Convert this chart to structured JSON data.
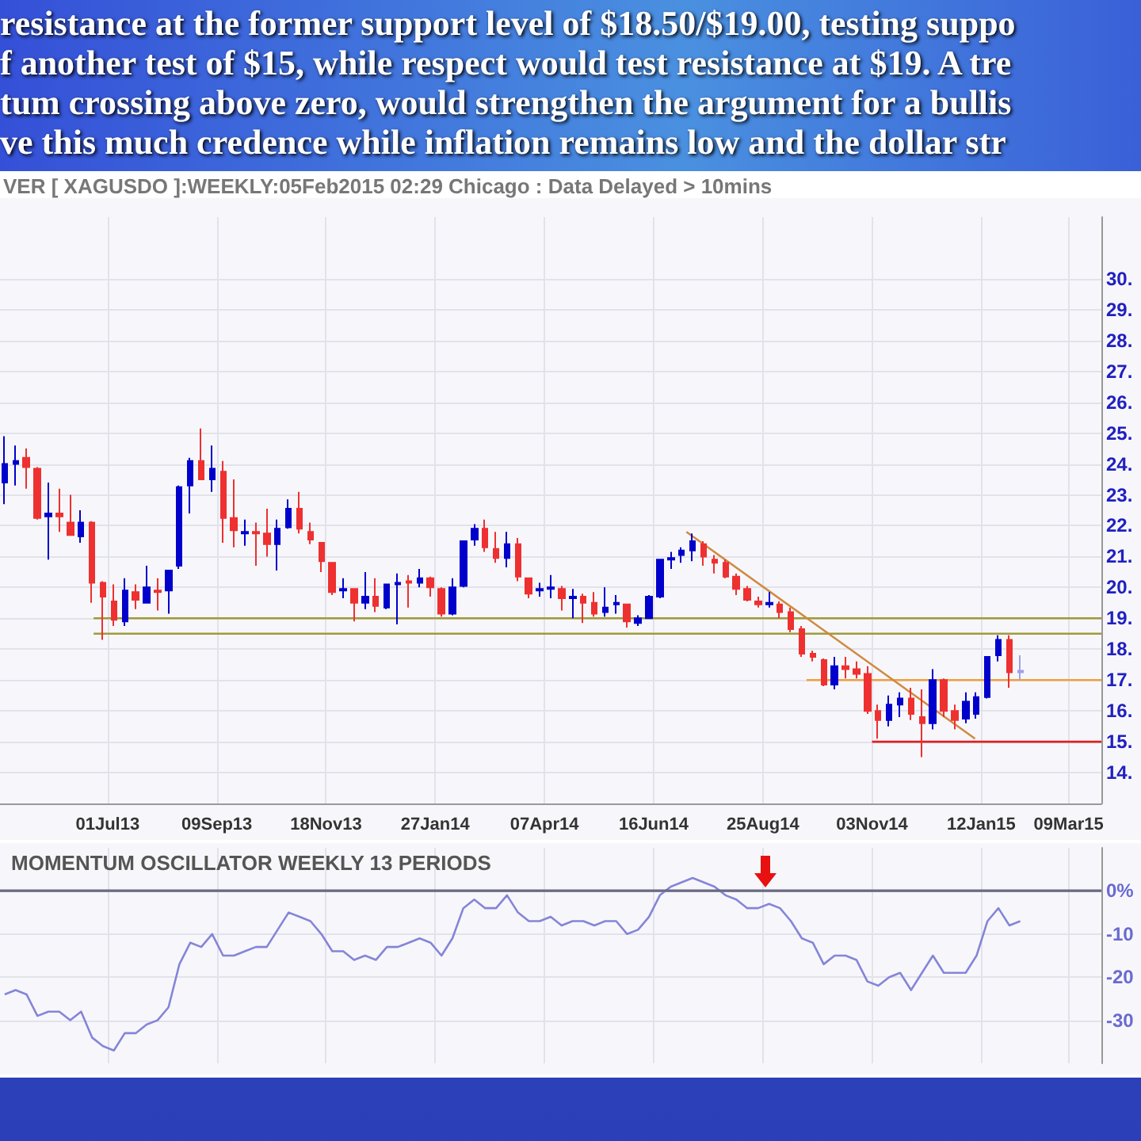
{
  "chart_data": [
    {
      "type": "candlestick",
      "subtitle": "VER [ XAGUSDO ]:WEEKLY:05Feb2015 02:29 Chicago : Data Delayed > 10mins",
      "annotations": [
        "resistance at the former support level of $18.50/$19.00, testing suppo",
        "f another test of $15, while respect would test resistance at $19. A tre",
        "tum crossing above zero, would strengthen the argument for a bullis",
        "ve this much credence while inflation remains low and the dollar str"
      ],
      "x": [
        "2013-04-26",
        "2013-05-03",
        "2013-05-10",
        "2013-05-17",
        "2013-05-24",
        "2013-05-31",
        "2013-06-07",
        "2013-06-14",
        "2013-06-21",
        "2013-06-28",
        "2013-07-05",
        "2013-07-12",
        "2013-07-19",
        "2013-07-26",
        "2013-08-02",
        "2013-08-09",
        "2013-08-16",
        "2013-08-23",
        "2013-08-30",
        "2013-09-06",
        "2013-09-13",
        "2013-09-20",
        "2013-09-27",
        "2013-10-04",
        "2013-10-11",
        "2013-10-18",
        "2013-10-25",
        "2013-11-01",
        "2013-11-08",
        "2013-11-15",
        "2013-11-22",
        "2013-11-29",
        "2013-12-06",
        "2013-12-13",
        "2013-12-20",
        "2013-12-27",
        "2014-01-03",
        "2014-01-10",
        "2014-01-17",
        "2014-01-24",
        "2014-01-31",
        "2014-02-07",
        "2014-02-14",
        "2014-02-21",
        "2014-02-28",
        "2014-03-07",
        "2014-03-14",
        "2014-03-21",
        "2014-03-28",
        "2014-04-04",
        "2014-04-11",
        "2014-04-18",
        "2014-04-25",
        "2014-05-02",
        "2014-05-09",
        "2014-05-16",
        "2014-05-23",
        "2014-05-30",
        "2014-06-06",
        "2014-06-13",
        "2014-06-20",
        "2014-06-27",
        "2014-07-04",
        "2014-07-11",
        "2014-07-18",
        "2014-07-25",
        "2014-08-01",
        "2014-08-08",
        "2014-08-15",
        "2014-08-22",
        "2014-08-29",
        "2014-09-05",
        "2014-09-12",
        "2014-09-19",
        "2014-09-26",
        "2014-10-03",
        "2014-10-10",
        "2014-10-17",
        "2014-10-24",
        "2014-10-31",
        "2014-11-07",
        "2014-11-14",
        "2014-11-21",
        "2014-11-28",
        "2014-12-05",
        "2014-12-12",
        "2014-12-19",
        "2014-12-26",
        "2015-01-02",
        "2015-01-09",
        "2015-01-16",
        "2015-01-23",
        "2015-01-30",
        "2015-02-06"
      ],
      "ohlc": [
        [
          23.4,
          24.9,
          22.7,
          24.0
        ],
        [
          24.0,
          24.6,
          23.3,
          24.1
        ],
        [
          24.2,
          24.5,
          23.2,
          23.9
        ],
        [
          23.85,
          23.9,
          22.2,
          22.25
        ],
        [
          22.3,
          23.4,
          20.9,
          22.4
        ],
        [
          22.4,
          23.2,
          21.8,
          22.3
        ],
        [
          22.1,
          23.0,
          21.7,
          21.7
        ],
        [
          21.65,
          22.5,
          21.45,
          22.1
        ],
        [
          22.1,
          22.15,
          19.5,
          20.15
        ],
        [
          20.15,
          20.2,
          18.3,
          19.7
        ],
        [
          19.55,
          20.1,
          18.75,
          18.95
        ],
        [
          18.9,
          20.3,
          18.75,
          19.9
        ],
        [
          19.85,
          20.1,
          19.3,
          19.6
        ],
        [
          19.5,
          20.7,
          19.5,
          20.0
        ],
        [
          19.9,
          20.3,
          19.25,
          19.85
        ],
        [
          19.9,
          20.55,
          19.15,
          20.55
        ],
        [
          20.7,
          23.3,
          20.6,
          23.25
        ],
        [
          23.3,
          24.2,
          22.4,
          24.1
        ],
        [
          24.1,
          25.15,
          23.5,
          23.5
        ],
        [
          23.5,
          24.6,
          23.1,
          23.85
        ],
        [
          23.75,
          24.1,
          21.45,
          22.25
        ],
        [
          22.25,
          23.5,
          21.3,
          21.85
        ],
        [
          21.75,
          22.2,
          21.35,
          21.8
        ],
        [
          21.8,
          22.1,
          20.7,
          21.75
        ],
        [
          21.75,
          22.55,
          21.0,
          21.4
        ],
        [
          21.4,
          22.2,
          20.55,
          21.9
        ],
        [
          21.95,
          22.85,
          21.9,
          22.55
        ],
        [
          22.55,
          23.1,
          21.75,
          21.9
        ],
        [
          21.8,
          22.1,
          21.4,
          21.55
        ],
        [
          21.45,
          21.45,
          20.5,
          20.85
        ],
        [
          20.8,
          20.8,
          19.75,
          19.85
        ],
        [
          19.9,
          20.3,
          19.65,
          19.95
        ],
        [
          19.95,
          19.95,
          18.9,
          19.5
        ],
        [
          19.5,
          20.5,
          19.3,
          19.7
        ],
        [
          19.7,
          20.3,
          19.2,
          19.4
        ],
        [
          19.35,
          20.1,
          19.3,
          20.1
        ],
        [
          20.1,
          20.45,
          18.8,
          20.15
        ],
        [
          20.2,
          20.4,
          19.35,
          20.15
        ],
        [
          20.15,
          20.6,
          20.0,
          20.3
        ],
        [
          20.3,
          20.35,
          19.7,
          20.0
        ],
        [
          19.95,
          20.0,
          19.05,
          19.15
        ],
        [
          19.15,
          20.3,
          19.1,
          20.0
        ],
        [
          20.05,
          21.5,
          20.0,
          21.5
        ],
        [
          21.55,
          22.05,
          21.35,
          21.9
        ],
        [
          21.9,
          22.2,
          21.15,
          21.3
        ],
        [
          21.25,
          21.8,
          20.8,
          20.95
        ],
        [
          20.95,
          21.8,
          20.65,
          21.4
        ],
        [
          21.4,
          21.6,
          20.2,
          20.35
        ],
        [
          20.3,
          20.3,
          19.65,
          19.8
        ],
        [
          19.9,
          20.15,
          19.7,
          19.95
        ],
        [
          19.95,
          20.4,
          19.65,
          20.0
        ],
        [
          19.95,
          20.05,
          19.25,
          19.65
        ],
        [
          19.65,
          19.95,
          19.0,
          19.7
        ],
        [
          19.7,
          19.8,
          18.85,
          19.5
        ],
        [
          19.5,
          19.85,
          19.05,
          19.15
        ],
        [
          19.2,
          20.0,
          19.05,
          19.35
        ],
        [
          19.45,
          19.75,
          19.15,
          19.5
        ],
        [
          19.45,
          19.45,
          18.7,
          18.9
        ],
        [
          18.85,
          19.1,
          18.75,
          19.0
        ],
        [
          19.0,
          19.75,
          18.98,
          19.7
        ],
        [
          19.7,
          20.9,
          19.65,
          20.9
        ],
        [
          20.9,
          21.15,
          20.6,
          20.95
        ],
        [
          21.05,
          21.3,
          20.8,
          21.2
        ],
        [
          21.2,
          21.75,
          20.85,
          21.5
        ],
        [
          21.4,
          21.5,
          20.7,
          21.0
        ],
        [
          20.9,
          21.05,
          20.45,
          20.8
        ],
        [
          20.8,
          20.9,
          20.3,
          20.35
        ],
        [
          20.35,
          20.45,
          19.75,
          19.95
        ],
        [
          19.95,
          20.05,
          19.55,
          19.6
        ],
        [
          19.55,
          19.7,
          19.35,
          19.45
        ],
        [
          19.45,
          19.85,
          19.35,
          19.5
        ],
        [
          19.45,
          19.55,
          19.0,
          19.2
        ],
        [
          19.2,
          19.35,
          18.55,
          18.65
        ],
        [
          18.65,
          18.75,
          17.75,
          17.85
        ],
        [
          17.85,
          17.95,
          17.6,
          17.75
        ],
        [
          17.65,
          17.7,
          16.8,
          16.85
        ],
        [
          16.85,
          17.75,
          16.7,
          17.45
        ],
        [
          17.45,
          17.75,
          17.05,
          17.35
        ],
        [
          17.35,
          17.6,
          17.05,
          17.2
        ],
        [
          17.2,
          17.45,
          15.9,
          16.0
        ],
        [
          16.0,
          16.2,
          15.1,
          15.7
        ],
        [
          15.7,
          16.5,
          15.5,
          16.2
        ],
        [
          16.2,
          16.6,
          15.8,
          16.4
        ],
        [
          16.4,
          16.75,
          15.7,
          15.9
        ],
        [
          15.8,
          16.7,
          14.5,
          15.6
        ],
        [
          15.6,
          17.35,
          15.4,
          17.0
        ],
        [
          17.0,
          17.05,
          15.8,
          16.0
        ],
        [
          16.0,
          16.2,
          15.4,
          15.7
        ],
        [
          15.75,
          16.6,
          15.6,
          16.3
        ],
        [
          15.9,
          16.6,
          15.75,
          16.45
        ],
        [
          16.45,
          17.75,
          16.4,
          17.75
        ],
        [
          17.8,
          18.45,
          17.6,
          18.3
        ],
        [
          18.3,
          18.45,
          16.75,
          17.25
        ],
        [
          17.25,
          17.8,
          17.0,
          17.3
        ]
      ],
      "colors": [
        "#0000cc",
        "#0000cc",
        "#ee3030",
        "#ee3030",
        "#0000cc",
        "#ee3030",
        "#ee3030",
        "#0000cc",
        "#ee3030",
        "#ee3030",
        "#ee3030",
        "#0000cc",
        "#ee3030",
        "#0000cc",
        "#ee3030",
        "#0000cc",
        "#0000cc",
        "#0000cc",
        "#ee3030",
        "#0000cc",
        "#ee3030",
        "#ee3030",
        "#0000cc",
        "#ee3030",
        "#ee3030",
        "#0000cc",
        "#0000cc",
        "#ee3030",
        "#ee3030",
        "#ee3030",
        "#ee3030",
        "#0000cc",
        "#ee3030",
        "#0000cc",
        "#ee3030",
        "#0000cc",
        "#0000cc",
        "#ee3030",
        "#0000cc",
        "#ee3030",
        "#ee3030",
        "#0000cc",
        "#0000cc",
        "#0000cc",
        "#ee3030",
        "#ee3030",
        "#0000cc",
        "#ee3030",
        "#ee3030",
        "#0000cc",
        "#0000cc",
        "#ee3030",
        "#0000cc",
        "#ee3030",
        "#ee3030",
        "#0000cc",
        "#0000cc",
        "#ee3030",
        "#0000cc",
        "#0000cc",
        "#0000cc",
        "#0000cc",
        "#0000cc",
        "#0000cc",
        "#ee3030",
        "#ee3030",
        "#ee3030",
        "#ee3030",
        "#ee3030",
        "#ee3030",
        "#0000cc",
        "#ee3030",
        "#ee3030",
        "#ee3030",
        "#ee3030",
        "#ee3030",
        "#0000cc",
        "#ee3030",
        "#ee3030",
        "#ee3030",
        "#ee3030",
        "#0000cc",
        "#0000cc",
        "#ee3030",
        "#ee3030",
        "#0000cc",
        "#ee3030",
        "#ee3030",
        "#0000cc",
        "#0000cc",
        "#0000cc",
        "#0000cc",
        "#ee3030",
        "#9fa0e8"
      ],
      "series": [
        {
          "type": "line",
          "x": [
            "2013-06-22",
            "2015-03-30"
          ],
          "values": [
            19.0,
            19.0
          ],
          "color": "#a09a3a"
        },
        {
          "type": "line",
          "x": [
            "2013-06-22",
            "2015-03-30"
          ],
          "values": [
            18.5,
            18.5
          ],
          "color": "#a09a3a"
        },
        {
          "type": "line",
          "x": [
            "2014-09-22",
            "2015-03-30"
          ],
          "values": [
            17.0,
            17.0
          ],
          "color": "#f0a040"
        },
        {
          "type": "line",
          "x": [
            "2014-11-03",
            "2015-03-30"
          ],
          "values": [
            15.0,
            15.0
          ],
          "color": "#e02020"
        },
        {
          "type": "line",
          "x": [
            "2014-07-07",
            "2015-01-08"
          ],
          "values": [
            21.8,
            15.1
          ],
          "color": "#d08a40"
        }
      ],
      "xlim": [
        "2013-04-23",
        "2015-03-30"
      ],
      "xticks": [
        {
          "value": "2013-07-01",
          "label": "01Jul13"
        },
        {
          "value": "2013-09-09",
          "label": "09Sep13"
        },
        {
          "value": "2013-11-18",
          "label": "18Nov13"
        },
        {
          "value": "2014-01-27",
          "label": "27Jan14"
        },
        {
          "value": "2014-04-07",
          "label": "07Apr14"
        },
        {
          "value": "2014-06-16",
          "label": "16Jun14"
        },
        {
          "value": "2014-08-25",
          "label": "25Aug14"
        },
        {
          "value": "2014-11-03",
          "label": "03Nov14"
        },
        {
          "value": "2015-01-12",
          "label": "12Jan15"
        },
        {
          "value": "2015-03-09",
          "label": "09Mar15"
        }
      ],
      "ylim": [
        13,
        32
      ],
      "yticks": [
        {
          "value": 14,
          "label": "14."
        },
        {
          "value": 15,
          "label": "15."
        },
        {
          "value": 16,
          "label": "16."
        },
        {
          "value": 17,
          "label": "17."
        },
        {
          "value": 18,
          "label": "18."
        },
        {
          "value": 19,
          "label": "19."
        },
        {
          "value": 20,
          "label": "20."
        },
        {
          "value": 21,
          "label": "21."
        },
        {
          "value": 22,
          "label": "22."
        },
        {
          "value": 23,
          "label": "23."
        },
        {
          "value": 24,
          "label": "24."
        },
        {
          "value": 25,
          "label": "25."
        },
        {
          "value": 26,
          "label": "26."
        },
        {
          "value": 27,
          "label": "27."
        },
        {
          "value": 28,
          "label": "28."
        },
        {
          "value": 29,
          "label": "29."
        },
        {
          "value": 30,
          "label": "30."
        }
      ],
      "grid": true
    },
    {
      "type": "line",
      "title": "MOMENTUM OSCILLATOR WEEKLY 13 PERIODS",
      "color": "#8585d8",
      "x": [
        "2013-04-26",
        "2013-05-03",
        "2013-05-10",
        "2013-05-17",
        "2013-05-24",
        "2013-05-31",
        "2013-06-07",
        "2013-06-14",
        "2013-06-21",
        "2013-06-28",
        "2013-07-05",
        "2013-07-12",
        "2013-07-19",
        "2013-07-26",
        "2013-08-02",
        "2013-08-09",
        "2013-08-16",
        "2013-08-23",
        "2013-08-30",
        "2013-09-06",
        "2013-09-13",
        "2013-09-20",
        "2013-09-27",
        "2013-10-04",
        "2013-10-11",
        "2013-10-18",
        "2013-10-25",
        "2013-11-01",
        "2013-11-08",
        "2013-11-15",
        "2013-11-22",
        "2013-11-29",
        "2013-12-06",
        "2013-12-13",
        "2013-12-20",
        "2013-12-27",
        "2014-01-03",
        "2014-01-10",
        "2014-01-17",
        "2014-01-24",
        "2014-01-31",
        "2014-02-07",
        "2014-02-14",
        "2014-02-21",
        "2014-02-28",
        "2014-03-07",
        "2014-03-14",
        "2014-03-21",
        "2014-03-28",
        "2014-04-04",
        "2014-04-11",
        "2014-04-18",
        "2014-04-25",
        "2014-05-02",
        "2014-05-09",
        "2014-05-16",
        "2014-05-23",
        "2014-05-30",
        "2014-06-06",
        "2014-06-13",
        "2014-06-20",
        "2014-06-27",
        "2014-07-04",
        "2014-07-11",
        "2014-07-18",
        "2014-07-25",
        "2014-08-01",
        "2014-08-08",
        "2014-08-15",
        "2014-08-22",
        "2014-08-29",
        "2014-09-05",
        "2014-09-12",
        "2014-09-19",
        "2014-09-26",
        "2014-10-03",
        "2014-10-10",
        "2014-10-17",
        "2014-10-24",
        "2014-10-31",
        "2014-11-07",
        "2014-11-14",
        "2014-11-21",
        "2014-11-28",
        "2014-12-05",
        "2014-12-12",
        "2014-12-19",
        "2014-12-26",
        "2015-01-02",
        "2015-01-09",
        "2015-01-16",
        "2015-01-23",
        "2015-01-30",
        "2015-02-06"
      ],
      "values": [
        -24,
        -23,
        -24,
        -29,
        -28,
        -28,
        -30,
        -28,
        -34,
        -36,
        -37,
        -33,
        -33,
        -31,
        -30,
        -27,
        -17,
        -12,
        -13,
        -10,
        -15,
        -15,
        -14,
        -13,
        -13,
        -9,
        -5,
        -6,
        -7,
        -10,
        -14,
        -14,
        -16,
        -15,
        -16,
        -13,
        -13,
        -12,
        -11,
        -12,
        -15,
        -11,
        -4,
        -2,
        -4,
        -4,
        -1,
        -5,
        -7,
        -7,
        -6,
        -8,
        -7,
        -7,
        -8,
        -7,
        -7,
        -10,
        -9,
        -6,
        -1,
        1,
        2,
        3,
        2,
        1,
        -1,
        -2,
        -4,
        -4,
        -3,
        -4,
        -7,
        -11,
        -12,
        -17,
        -15,
        -15,
        -16,
        -21,
        -22,
        -20,
        -19,
        -23,
        -19,
        -15,
        -19,
        -19,
        -19,
        -15,
        -7,
        -4,
        -8,
        -7
      ],
      "xlim": [
        "2013-04-23",
        "2015-03-30"
      ],
      "xticks": [
        {
          "value": "2013-07-01",
          "label": null
        },
        {
          "value": "2013-09-09",
          "label": null
        },
        {
          "value": "2013-11-18",
          "label": null
        },
        {
          "value": "2014-01-27",
          "label": null
        },
        {
          "value": "2014-04-07",
          "label": null
        },
        {
          "value": "2014-06-16",
          "label": null
        },
        {
          "value": "2014-08-25",
          "label": null
        },
        {
          "value": "2014-11-03",
          "label": null
        },
        {
          "value": "2015-01-12",
          "label": null
        },
        {
          "value": "2015-03-09",
          "label": null
        }
      ],
      "ylim": [
        -40,
        10
      ],
      "yticks": [
        {
          "value": 0,
          "label": "0%"
        },
        {
          "value": -10,
          "label": "-10"
        },
        {
          "value": -20,
          "label": "-20"
        },
        {
          "value": -30,
          "label": "-30"
        }
      ],
      "ref_lines": [
        {
          "axis": "y",
          "value": 0,
          "color": "#6a6a88"
        }
      ],
      "grid": true,
      "tick_labels": "y"
    }
  ]
}
